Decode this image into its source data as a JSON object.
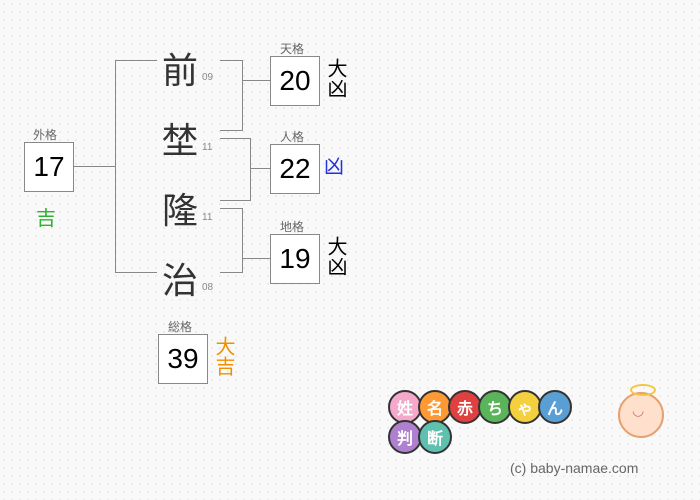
{
  "gaikaku": {
    "label": "外格",
    "value": "17",
    "fortune": "吉",
    "fortune_color": "#2ab52a"
  },
  "tenkaku": {
    "label": "天格",
    "value": "20",
    "fortune": "大凶",
    "fortune_color": "#000000"
  },
  "jinkaku": {
    "label": "人格",
    "value": "22",
    "fortune": "凶",
    "fortune_color": "#2233dd"
  },
  "chikaku": {
    "label": "地格",
    "value": "19",
    "fortune": "大凶",
    "fortune_color": "#000000"
  },
  "soukaku": {
    "label": "総格",
    "value": "39",
    "fortune": "大吉",
    "fortune_color": "#f09000"
  },
  "name_chars": [
    {
      "char": "前",
      "strokes": "09"
    },
    {
      "char": "埜",
      "strokes": "11"
    },
    {
      "char": "隆",
      "strokes": "11"
    },
    {
      "char": "治",
      "strokes": "08"
    }
  ],
  "logo": {
    "chars": [
      {
        "t": "姓",
        "c": "#f4a8cc"
      },
      {
        "t": "名",
        "c": "#ff9933"
      },
      {
        "t": "赤",
        "c": "#e04040"
      },
      {
        "t": "ち",
        "c": "#5ab45a"
      },
      {
        "t": "ゃ",
        "c": "#f4d03f"
      },
      {
        "t": "ん",
        "c": "#5a9fd4"
      }
    ],
    "chars2": [
      {
        "t": "判",
        "c": "#b080d0"
      },
      {
        "t": "断",
        "c": "#60c0b0"
      }
    ]
  },
  "copyright": "(c) baby-namae.com",
  "style": {
    "box_border": "#888888",
    "bg": "#f9f9f9"
  }
}
